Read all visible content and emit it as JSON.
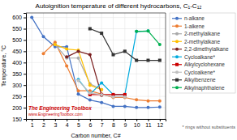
{
  "chart_data": {
    "type": "line",
    "title": "Autoignition temperature of different hydrocarbons, C₁-C₁₂",
    "x_label": "Carbon number, C#",
    "y_label": "Temperature, °C",
    "xlim": [
      0.5,
      12.5
    ],
    "ylim": [
      150,
      620
    ],
    "xticks": [
      1,
      2,
      3,
      4,
      5,
      6,
      7,
      8,
      9,
      10,
      11,
      12
    ],
    "yticks": [
      150,
      200,
      250,
      300,
      350,
      400,
      450,
      500,
      550,
      600
    ],
    "grid": true,
    "legend": "right",
    "series": [
      {
        "name": "n-alkane",
        "color": "#4472C4",
        "marker": "circle",
        "x": [
          1,
          2,
          3,
          4,
          5,
          6,
          7,
          8,
          9,
          10,
          11,
          12
        ],
        "values": [
          600,
          515,
          470,
          470,
          260,
          234,
          223,
          206,
          206,
          201,
          201,
          203
        ]
      },
      {
        "name": "1-alkene",
        "color": "#ED7D31",
        "marker": "circle",
        "x": [
          2,
          3,
          4,
          5,
          6,
          7,
          8,
          9,
          10,
          11,
          12
        ],
        "values": [
          440,
          490,
          385,
          275,
          275,
          260,
          245,
          245,
          235,
          230,
          230
        ]
      },
      {
        "name": "2-methylalkane",
        "color": "#A9A9A9",
        "marker": "circle",
        "x": [
          3,
          4,
          5,
          6,
          7
        ],
        "values": [
          480,
          420,
          420,
          306,
          280
        ]
      },
      {
        "name": "2-methylalkane",
        "color": "#FFC000",
        "marker": "circle",
        "x": [
          3,
          4,
          5,
          6,
          7
        ],
        "values": [
          480,
          460,
          455,
          300,
          280
        ]
      },
      {
        "name": "2,2-dimethylalkane",
        "color": "#7B2020",
        "marker": "circle",
        "x": [
          4,
          5,
          6,
          7
        ],
        "values": [
          425,
          450,
          435,
          255
        ]
      },
      {
        "name": "Cycloalkane*",
        "color": "#00AADD",
        "marker": "circle",
        "x": [
          5,
          6,
          7,
          8,
          9,
          10,
          11
        ],
        "values": [
          325,
          260,
          310,
          258,
          258,
          538,
          540
        ]
      },
      {
        "name": "Alkylcyclohexane",
        "color": "#CC0000",
        "marker": "square",
        "x": [
          6,
          7,
          8,
          9
        ],
        "values": [
          258,
          258,
          258,
          258
        ]
      },
      {
        "name": "Cycloalkene*",
        "color": "#C0C0C0",
        "marker": "circle",
        "x": [
          5,
          6,
          7,
          8,
          9
        ],
        "values": [
          320,
          265,
          258,
          248,
          248
        ]
      },
      {
        "name": "Alkylbenzene",
        "color": "#333333",
        "marker": "square",
        "x": [
          6,
          7,
          8,
          9,
          10,
          11,
          12
        ],
        "values": [
          550,
          530,
          435,
          450,
          410,
          410,
          410
        ]
      },
      {
        "name": "Alkylnaphthalene",
        "color": "#00B050",
        "marker": "circle",
        "x": [
          10,
          11,
          12
        ],
        "values": [
          538,
          540,
          480
        ]
      }
    ],
    "annotations": [
      "The Engineering Toolbox",
      "www.EngineeringToolbox.com",
      "* rings without substituents"
    ]
  }
}
